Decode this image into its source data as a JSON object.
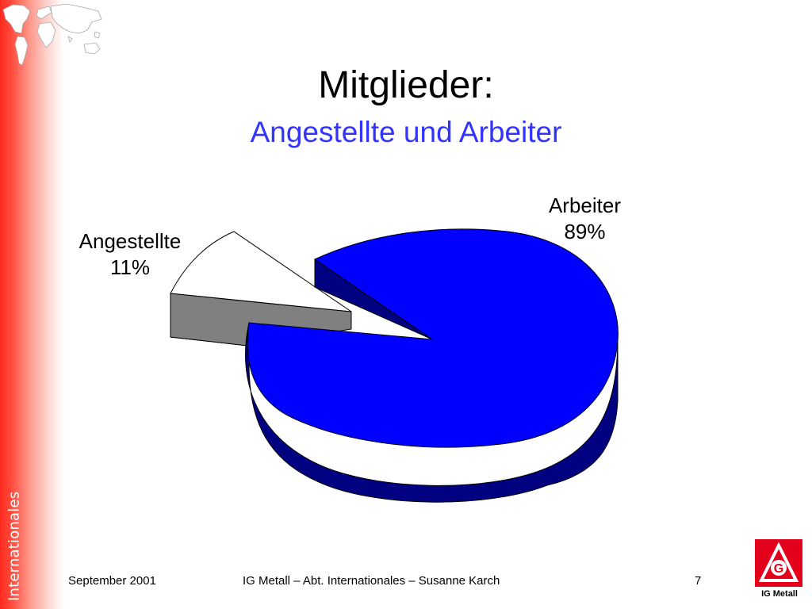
{
  "slide": {
    "title": "Mitglieder:",
    "subtitle": "Angestellte und Arbeiter",
    "side_label": "Internationales",
    "footer_date": "September 2001",
    "footer_center": "IG Metall – Abt. Internationales – Susanne Karch",
    "page_number": "7",
    "logo_text": "IG Metall",
    "logo_letter": "G"
  },
  "colors": {
    "arbeiter_top": "#0000ff",
    "arbeiter_side": "#000080",
    "angestellte_top": "#ffffff",
    "angestellte_side": "#808080",
    "brand_red": "#e2001a",
    "subtitle_blue": "#3333ff"
  },
  "chart_data": {
    "type": "pie",
    "variant": "3d-exploded",
    "categories": [
      "Angestellte",
      "Arbeiter"
    ],
    "values": [
      11,
      89
    ],
    "labels": [
      {
        "name": "Angestellte",
        "value_label": "11%"
      },
      {
        "name": "Arbeiter",
        "value_label": "89%"
      }
    ],
    "exploded_slice": "Angestellte"
  }
}
